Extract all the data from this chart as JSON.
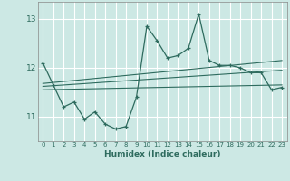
{
  "xlabel": "Humidex (Indice chaleur)",
  "bg_color": "#cce8e4",
  "grid_color": "#ffffff",
  "line_color": "#2e6b5e",
  "x_data": [
    0,
    1,
    2,
    3,
    4,
    5,
    6,
    7,
    8,
    9,
    10,
    11,
    12,
    13,
    14,
    15,
    16,
    17,
    18,
    19,
    20,
    21,
    22,
    23
  ],
  "y_main": [
    12.1,
    11.65,
    11.2,
    11.3,
    10.95,
    11.1,
    10.85,
    10.75,
    10.8,
    11.4,
    12.85,
    12.55,
    12.2,
    12.25,
    12.4,
    13.1,
    12.15,
    12.05,
    12.05,
    12.0,
    11.9,
    11.9,
    11.55,
    11.6
  ],
  "trend1_x": [
    0,
    23
  ],
  "trend1_y": [
    11.55,
    11.65
  ],
  "trend2_x": [
    0,
    23
  ],
  "trend2_y": [
    11.62,
    11.95
  ],
  "trend3_x": [
    0,
    23
  ],
  "trend3_y": [
    11.68,
    12.15
  ],
  "xlim": [
    -0.5,
    23.5
  ],
  "ylim": [
    10.5,
    13.35
  ],
  "yticks": [
    11,
    12,
    13
  ],
  "xticks": [
    0,
    1,
    2,
    3,
    4,
    5,
    6,
    7,
    8,
    9,
    10,
    11,
    12,
    13,
    14,
    15,
    16,
    17,
    18,
    19,
    20,
    21,
    22,
    23
  ]
}
